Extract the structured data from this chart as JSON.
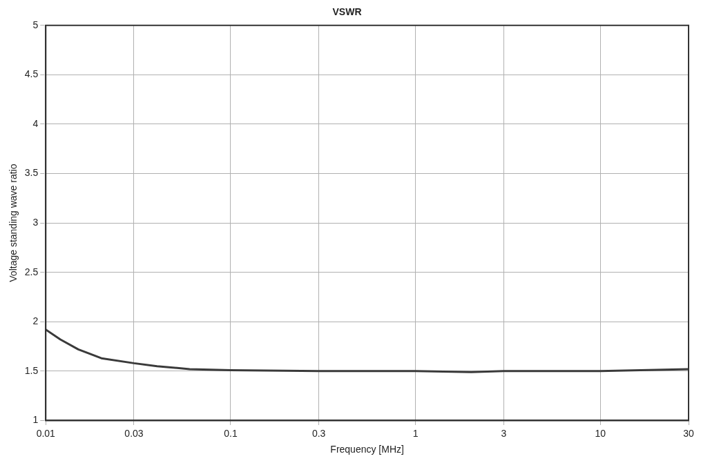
{
  "chart_data": {
    "type": "line",
    "title": "VSWR",
    "xlabel": "Frequency [MHz]",
    "ylabel": "Voltage standing wave ratio",
    "log": "x",
    "grid": true,
    "marker": "none",
    "line_style": "solid",
    "xlim": [
      0.01,
      30
    ],
    "xticks": [
      0.01,
      0.03,
      0.1,
      0.3,
      1,
      3,
      10,
      30
    ],
    "ylim": [
      1,
      5
    ],
    "yticks": [
      1,
      1.5,
      2,
      2.5,
      3,
      3.5,
      4,
      4.5,
      5
    ],
    "series": [
      {
        "color": "#3a3a3a",
        "x": [
          0.01,
          0.012,
          0.015,
          0.02,
          0.03,
          0.04,
          0.06,
          0.1,
          0.3,
          1,
          2,
          3,
          10,
          30
        ],
        "values": [
          1.92,
          1.82,
          1.72,
          1.63,
          1.58,
          1.55,
          1.52,
          1.51,
          1.5,
          1.5,
          1.49,
          1.5,
          1.5,
          1.52
        ]
      }
    ]
  }
}
